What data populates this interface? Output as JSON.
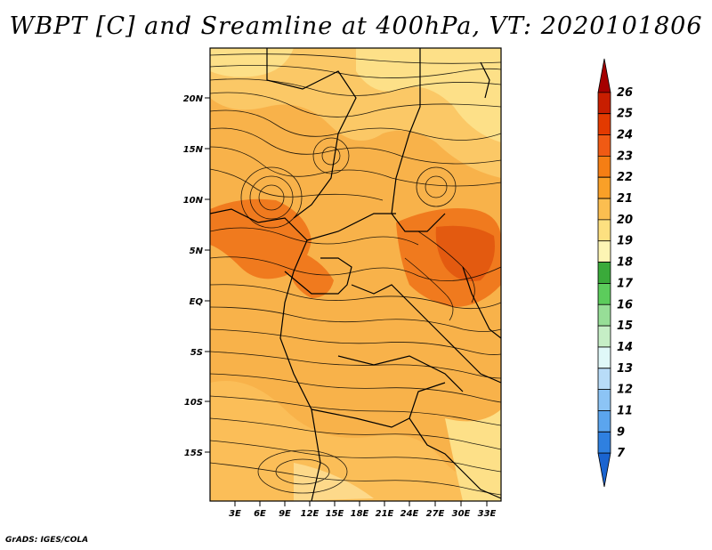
{
  "title": "WBPT [C] and Sreamline at 400hPa, VT: 2020101806",
  "footer": "GrADS: IGES/COLA",
  "map": {
    "lat_ticks": [
      "20N",
      "15N",
      "10N",
      "5N",
      "EQ",
      "5S",
      "10S",
      "15S"
    ],
    "lon_ticks": [
      "3E",
      "6E",
      "9E",
      "12E",
      "15E",
      "18E",
      "21E",
      "24E",
      "27E",
      "30E",
      "33E"
    ]
  },
  "colorbar": {
    "labels": [
      "26",
      "25",
      "24",
      "23",
      "22",
      "21",
      "20",
      "19",
      "18",
      "17",
      "16",
      "15",
      "14",
      "13",
      "12",
      "11",
      "9",
      "7"
    ],
    "colors": [
      "#a50000",
      "#c81e00",
      "#e33a00",
      "#f05a14",
      "#f57e14",
      "#f9a028",
      "#fbbe50",
      "#fde080",
      "#fdf5b4",
      "#3aaa3a",
      "#5ccc5c",
      "#97de97",
      "#c6eec6",
      "#e0f8f8",
      "#b8dcf8",
      "#8cc4f5",
      "#5ba5ee",
      "#2f80e0",
      "#1a64d0"
    ]
  }
}
